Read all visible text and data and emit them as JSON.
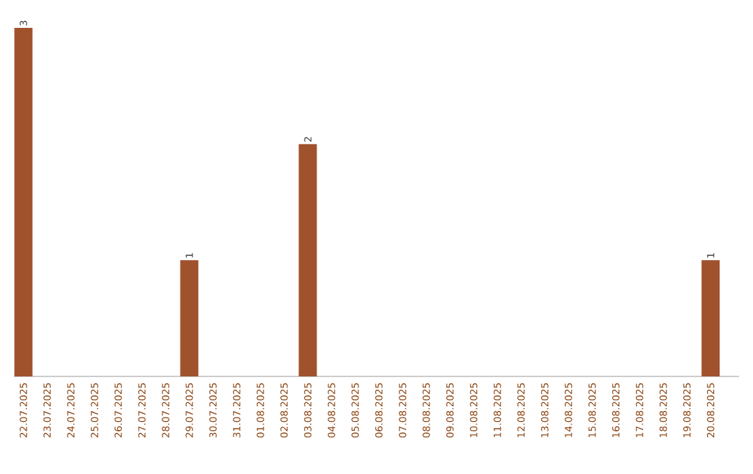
{
  "chart_data": {
    "type": "bar",
    "categories": [
      "22.07.2025",
      "23.07.2025",
      "24.07.2025",
      "25.07.2025",
      "26.07.2025",
      "27.07.2025",
      "28.07.2025",
      "29.07.2025",
      "30.07.2025",
      "31.07.2025",
      "01.08.2025",
      "02.08.2025",
      "03.08.2025",
      "04.08.2025",
      "05.08.2025",
      "06.08.2025",
      "07.08.2025",
      "08.08.2025",
      "09.08.2025",
      "10.08.2025",
      "11.08.2025",
      "12.08.2025",
      "13.08.2025",
      "14.08.2025",
      "15.08.2025",
      "16.08.2025",
      "17.08.2025",
      "18.08.2025",
      "19.08.2025",
      "20.08.2025"
    ],
    "values": [
      3,
      0,
      0,
      0,
      0,
      0,
      0,
      1,
      0,
      0,
      0,
      0,
      2,
      0,
      0,
      0,
      0,
      0,
      0,
      0,
      0,
      0,
      0,
      0,
      0,
      0,
      0,
      0,
      0,
      1
    ],
    "value_labels": [
      "3",
      null,
      null,
      null,
      null,
      null,
      null,
      "1",
      null,
      null,
      null,
      null,
      "2",
      null,
      null,
      null,
      null,
      null,
      null,
      null,
      null,
      null,
      null,
      null,
      null,
      null,
      null,
      null,
      null,
      "1"
    ],
    "color": "#a0522d"
  }
}
